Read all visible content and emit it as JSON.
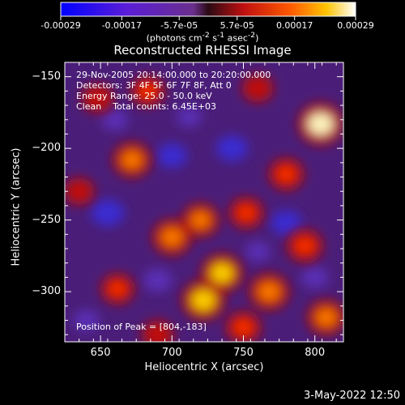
{
  "colorbar": {
    "tick_labels": [
      "-0.00029",
      "-0.00017",
      "-5.7e-05",
      "5.7e-05",
      "0.00017",
      "0.00029"
    ],
    "tick_values": [
      -0.00029,
      -0.00017,
      -5.7e-05,
      5.7e-05,
      0.00017,
      0.00029
    ],
    "unit_label_html": "(photons cm<sup>-2</sup> s<sup>-1</sup> asec<sup>-2</sup>)",
    "range": [
      -0.00029,
      0.00029
    ],
    "colormap": "blue-purple-red-orange-yellow-white"
  },
  "chart_data": {
    "type": "heatmap",
    "title": "Reconstructed RHESSI Image",
    "xlabel": "Heliocentric X (arcsec)",
    "ylabel": "Heliocentric Y (arcsec)",
    "xlim": [
      625,
      820
    ],
    "ylim": [
      -335,
      -140
    ],
    "x_ticks": [
      650,
      700,
      750,
      800
    ],
    "y_ticks": [
      -150,
      -200,
      -250,
      -300
    ],
    "annotations": [
      "29-Nov-2005 20:14:00.000 to 20:20:00.000",
      "Detectors: 3F 4F 5F 6F 7F 8F, Att 0",
      "Energy Range: 25.0 - 50.0 keV",
      "Clean    Total counts: 6.45E+03"
    ],
    "peak_label": "Position of Peak = [804,-183]",
    "peak_position": [
      804,
      -183
    ],
    "hotspots": [
      {
        "x": 804,
        "y": -183,
        "value": 0.00029
      },
      {
        "x": 672,
        "y": -208,
        "value": 0.0002
      },
      {
        "x": 720,
        "y": -250,
        "value": 0.00018
      },
      {
        "x": 700,
        "y": -262,
        "value": 0.00021
      },
      {
        "x": 752,
        "y": -245,
        "value": 0.00015
      },
      {
        "x": 735,
        "y": -287,
        "value": 0.00024
      },
      {
        "x": 722,
        "y": -306,
        "value": 0.00026
      },
      {
        "x": 768,
        "y": -300,
        "value": 0.00022
      },
      {
        "x": 793,
        "y": -268,
        "value": 0.00017
      },
      {
        "x": 662,
        "y": -298,
        "value": 0.00014
      },
      {
        "x": 648,
        "y": -165,
        "value": 0.00012
      },
      {
        "x": 683,
        "y": -160,
        "value": 0.00014
      },
      {
        "x": 780,
        "y": -218,
        "value": 0.00016
      },
      {
        "x": 808,
        "y": -318,
        "value": 0.0002
      },
      {
        "x": 750,
        "y": -325,
        "value": 0.00016
      },
      {
        "x": 760,
        "y": -158,
        "value": 0.00011
      },
      {
        "x": 635,
        "y": -230,
        "value": 0.0001
      },
      {
        "x": 690,
        "y": -330,
        "value": 0.00012
      }
    ],
    "coldspots": [
      {
        "x": 655,
        "y": -245,
        "value": -0.00022
      },
      {
        "x": 700,
        "y": -205,
        "value": -0.00018
      },
      {
        "x": 742,
        "y": -200,
        "value": -0.0002
      },
      {
        "x": 690,
        "y": -292,
        "value": -0.00017
      },
      {
        "x": 780,
        "y": -252,
        "value": -0.00019
      },
      {
        "x": 660,
        "y": -180,
        "value": -0.00014
      },
      {
        "x": 712,
        "y": -178,
        "value": -0.00012
      },
      {
        "x": 800,
        "y": -290,
        "value": -0.00015
      },
      {
        "x": 640,
        "y": -320,
        "value": -0.00013
      },
      {
        "x": 760,
        "y": -272,
        "value": -0.00012
      }
    ]
  },
  "footer": {
    "date_stamp": "3-May-2022 12:50"
  }
}
